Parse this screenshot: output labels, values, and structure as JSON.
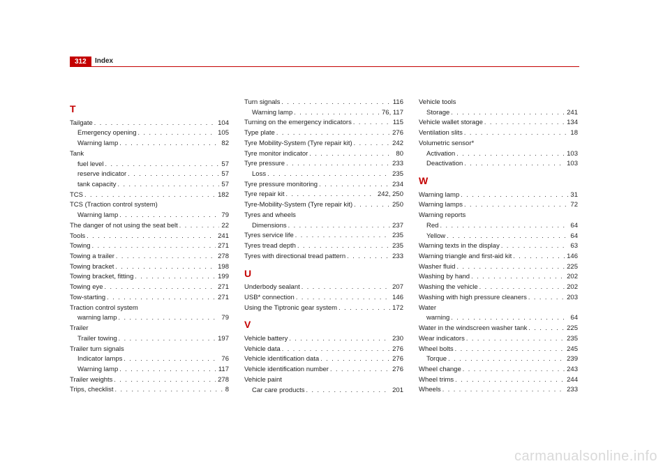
{
  "header": {
    "page_number": "312",
    "title": "Index",
    "accent_color": "#c40000"
  },
  "watermark": "carmanualsonline.info",
  "columns": [
    {
      "items": [
        {
          "type": "letter",
          "text": "T"
        },
        {
          "type": "entry",
          "label": "Tailgate",
          "page": "104"
        },
        {
          "type": "sub",
          "label": "Emergency opening",
          "page": "105"
        },
        {
          "type": "sub",
          "label": "Warning lamp",
          "page": "82"
        },
        {
          "type": "group",
          "label": "Tank"
        },
        {
          "type": "sub",
          "label": "fuel level",
          "page": "57"
        },
        {
          "type": "sub",
          "label": "reserve indicator",
          "page": "57"
        },
        {
          "type": "sub",
          "label": "tank capacity",
          "page": "57"
        },
        {
          "type": "entry",
          "label": "TCS",
          "page": "182"
        },
        {
          "type": "group",
          "label": "TCS (Traction control system)"
        },
        {
          "type": "sub",
          "label": "Warning lamp",
          "page": "79"
        },
        {
          "type": "entry",
          "label": "The danger of not using the seat belt",
          "page": "22"
        },
        {
          "type": "entry",
          "label": "Tools",
          "page": "241"
        },
        {
          "type": "entry",
          "label": "Towing",
          "page": "271"
        },
        {
          "type": "entry",
          "label": "Towing a trailer",
          "page": "278"
        },
        {
          "type": "entry",
          "label": "Towing bracket",
          "page": "198"
        },
        {
          "type": "entry",
          "label": "Towing bracket, fitting",
          "page": "199"
        },
        {
          "type": "entry",
          "label": "Towing eye",
          "page": "271"
        },
        {
          "type": "entry",
          "label": "Tow-starting",
          "page": "271"
        },
        {
          "type": "group",
          "label": "Traction control system"
        },
        {
          "type": "sub",
          "label": "warning lamp",
          "page": "79"
        },
        {
          "type": "group",
          "label": "Trailer"
        },
        {
          "type": "sub",
          "label": "Trailer towing",
          "page": "197"
        },
        {
          "type": "group",
          "label": "Trailer turn signals"
        },
        {
          "type": "sub",
          "label": "Indicator lamps",
          "page": "76"
        },
        {
          "type": "sub",
          "label": "Warning lamp",
          "page": "117"
        },
        {
          "type": "entry",
          "label": "Trailer weights",
          "page": "278"
        },
        {
          "type": "entry",
          "label": "Trips, checklist",
          "page": "8"
        }
      ]
    },
    {
      "items": [
        {
          "type": "entry",
          "label": "Turn signals",
          "page": "116"
        },
        {
          "type": "sub",
          "label": "Warning lamp",
          "page": "76, 117"
        },
        {
          "type": "entry",
          "label": "Turning on the emergency indicators",
          "page": "115"
        },
        {
          "type": "entry",
          "label": "Type plate",
          "page": "276"
        },
        {
          "type": "entry",
          "label": "Tyre Mobility-System (Tyre repair kit)",
          "page": "242"
        },
        {
          "type": "entry",
          "label": "Tyre monitor indicator",
          "page": "80"
        },
        {
          "type": "entry",
          "label": "Tyre pressure",
          "page": "233"
        },
        {
          "type": "sub",
          "label": "Loss",
          "page": "235"
        },
        {
          "type": "entry",
          "label": "Tyre pressure monitoring",
          "page": "234"
        },
        {
          "type": "entry",
          "label": "Tyre repair kit",
          "page": "242, 250"
        },
        {
          "type": "entry",
          "label": "Tyre-Mobility-System (Tyre repair kit)",
          "page": "250"
        },
        {
          "type": "group",
          "label": "Tyres and wheels"
        },
        {
          "type": "sub",
          "label": "Dimensions",
          "page": "237"
        },
        {
          "type": "entry",
          "label": "Tyres service life",
          "page": "235"
        },
        {
          "type": "entry",
          "label": "Tyres tread depth",
          "page": "235"
        },
        {
          "type": "entry",
          "label": "Tyres with directional tread pattern",
          "page": "233"
        },
        {
          "type": "letter",
          "text": "U"
        },
        {
          "type": "entry",
          "label": "Underbody sealant",
          "page": "207"
        },
        {
          "type": "entry",
          "label": "USB* connection",
          "page": "146"
        },
        {
          "type": "entry",
          "label": "Using the Tiptronic gear system",
          "page": "172"
        },
        {
          "type": "letter",
          "text": "V"
        },
        {
          "type": "entry",
          "label": "Vehicle battery",
          "page": "230"
        },
        {
          "type": "entry",
          "label": "Vehicle data",
          "page": "276"
        },
        {
          "type": "entry",
          "label": "Vehicle identification data",
          "page": "276"
        },
        {
          "type": "entry",
          "label": "Vehicle identification number",
          "page": "276"
        },
        {
          "type": "group",
          "label": "Vehicle paint"
        },
        {
          "type": "sub",
          "label": "Car care products",
          "page": "201"
        }
      ]
    },
    {
      "items": [
        {
          "type": "group",
          "label": "Vehicle tools"
        },
        {
          "type": "sub",
          "label": "Storage",
          "page": "241"
        },
        {
          "type": "entry",
          "label": "Vehicle wallet storage",
          "page": "134"
        },
        {
          "type": "entry",
          "label": "Ventilation slits",
          "page": "18"
        },
        {
          "type": "group",
          "label": "Volumetric sensor*"
        },
        {
          "type": "sub",
          "label": "Activation",
          "page": "103"
        },
        {
          "type": "sub",
          "label": "Deactivation",
          "page": "103"
        },
        {
          "type": "letter",
          "text": "W"
        },
        {
          "type": "entry",
          "label": "Warning lamp",
          "page": "31"
        },
        {
          "type": "entry",
          "label": "Warning lamps",
          "page": "72"
        },
        {
          "type": "group",
          "label": "Warning reports"
        },
        {
          "type": "sub",
          "label": "Red",
          "page": "64"
        },
        {
          "type": "sub",
          "label": "Yellow",
          "page": "64"
        },
        {
          "type": "entry",
          "label": "Warning texts in the display",
          "page": "63"
        },
        {
          "type": "entry",
          "label": "Warning triangle and first-aid kit",
          "page": "146"
        },
        {
          "type": "entry",
          "label": "Washer fluid",
          "page": "225"
        },
        {
          "type": "entry",
          "label": "Washing by hand",
          "page": "202"
        },
        {
          "type": "entry",
          "label": "Washing the vehicle",
          "page": "202"
        },
        {
          "type": "entry",
          "label": "Washing with high pressure cleaners",
          "page": "203"
        },
        {
          "type": "group",
          "label": "Water"
        },
        {
          "type": "sub",
          "label": "warning",
          "page": "64"
        },
        {
          "type": "entry",
          "label": "Water in the windscreen washer tank",
          "page": "225"
        },
        {
          "type": "entry",
          "label": "Wear indicators",
          "page": "235"
        },
        {
          "type": "entry",
          "label": "Wheel bolts",
          "page": "245"
        },
        {
          "type": "sub",
          "label": "Torque",
          "page": "239"
        },
        {
          "type": "entry",
          "label": "Wheel change",
          "page": "243"
        },
        {
          "type": "entry",
          "label": "Wheel trims",
          "page": "244"
        },
        {
          "type": "entry",
          "label": "Wheels",
          "page": "233"
        }
      ]
    }
  ]
}
